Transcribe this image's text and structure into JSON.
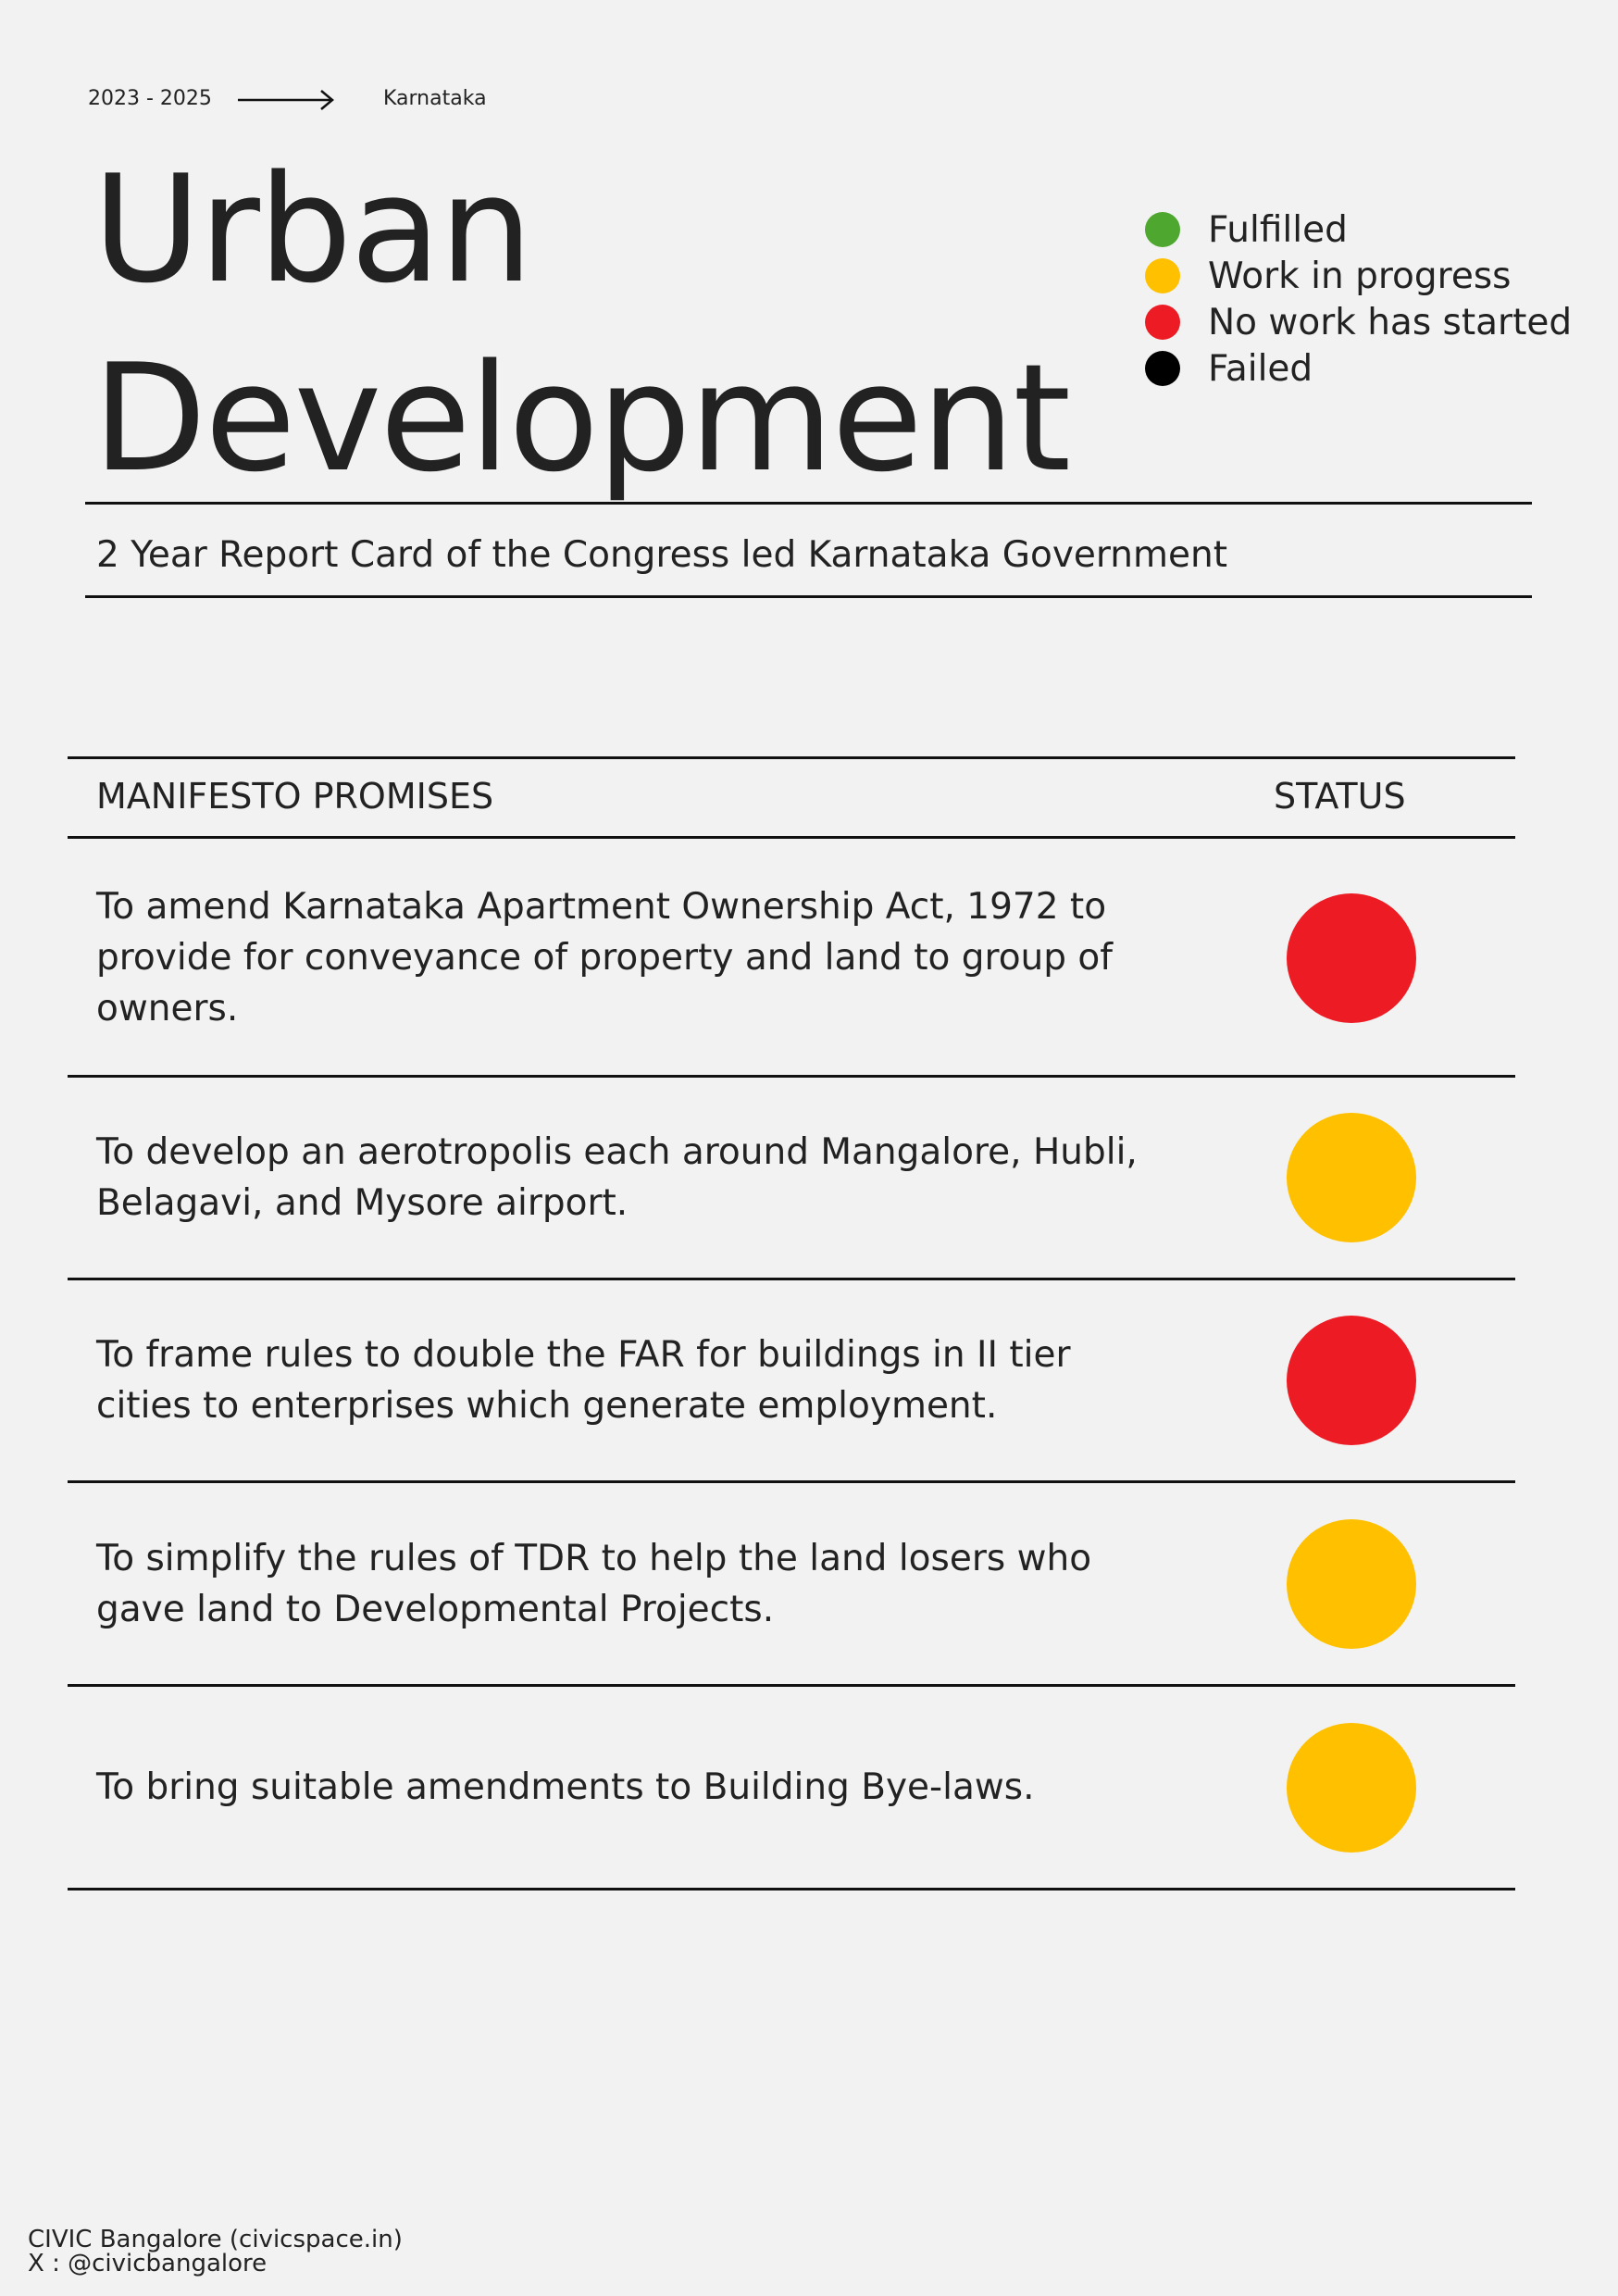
{
  "header": {
    "years": "2023 - 2025",
    "region": "Karnataka",
    "title_lines": [
      "Urban",
      "Development"
    ],
    "subtitle": "2 Year Report Card of the Congress led Karnataka Government"
  },
  "legend": [
    {
      "label": "Fulfilled",
      "color": "#4ea72e"
    },
    {
      "label": "Work in progress",
      "color": "#ffc000"
    },
    {
      "label": "No work has started",
      "color": "#ed1c24"
    },
    {
      "label": "Failed",
      "color": "#000000"
    }
  ],
  "table": {
    "columns": [
      "MANIFESTO PROMISES",
      "STATUS"
    ],
    "rows": [
      {
        "promise": "To amend Karnataka Apartment Ownership Act, 1972 to provide for conveyance of property and land to group of owners.",
        "color": "#ed1c24"
      },
      {
        "promise": "To develop an aerotropolis each around Mangalore, Hubli, Belagavi, and Mysore airport.",
        "color": "#ffc000"
      },
      {
        "promise": "To frame rules to double the FAR for buildings in II tier cities to enterprises which generate employment.",
        "color": "#ed1c24"
      },
      {
        "promise": "To simplify the rules of TDR to help the land losers who gave land to Developmental Projects.",
        "color": "#ffc000"
      },
      {
        "promise": "To bring suitable amendments to Building Bye-laws.",
        "color": "#ffc000"
      }
    ]
  },
  "footer": {
    "lines": [
      "CIVIC Bangalore (civicspace.in)",
      "X : @civicbangalore"
    ]
  }
}
